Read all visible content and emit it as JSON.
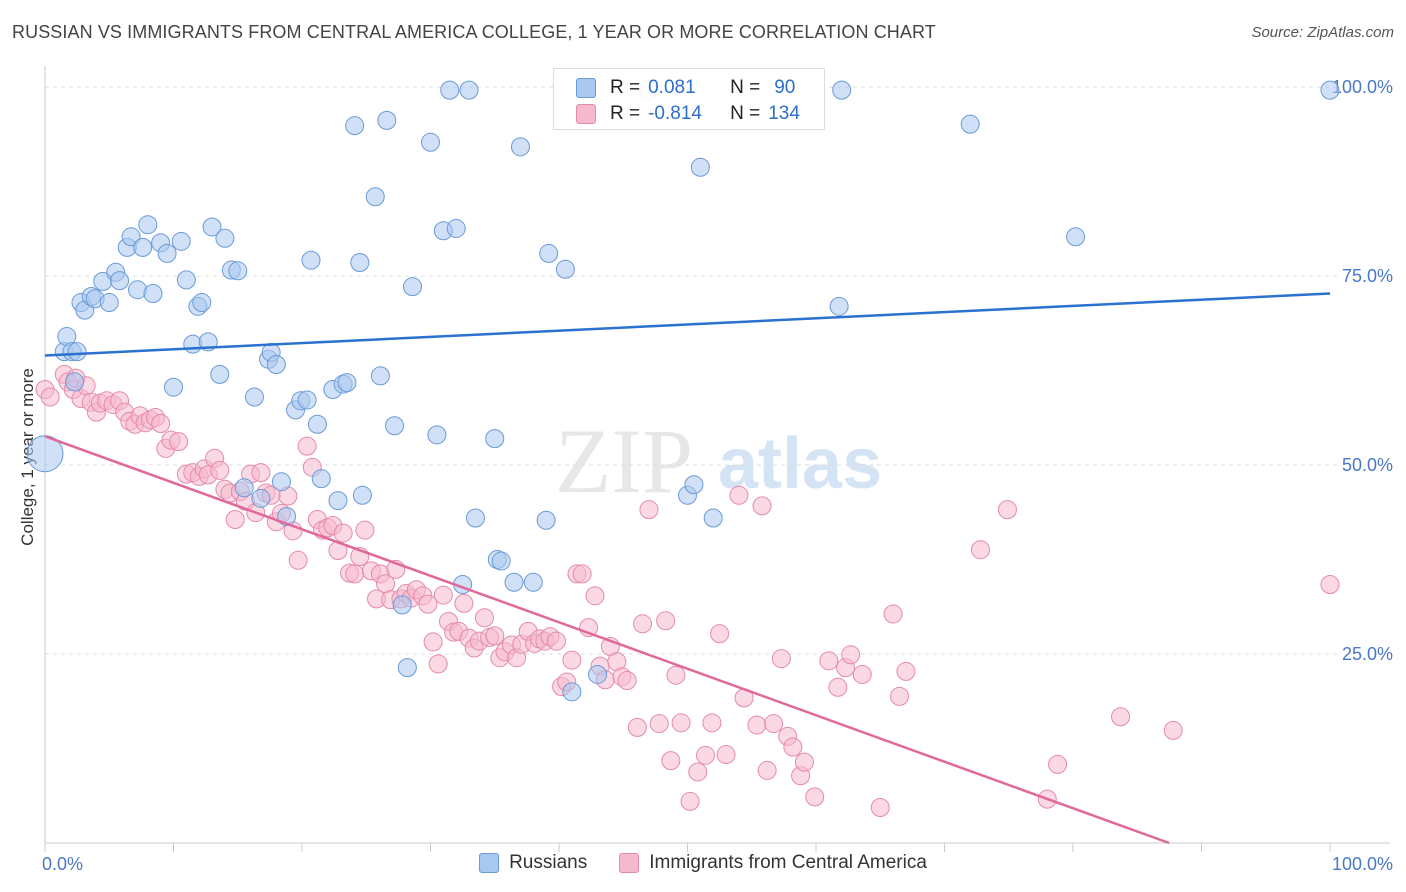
{
  "title": "RUSSIAN VS IMMIGRANTS FROM CENTRAL AMERICA COLLEGE, 1 YEAR OR MORE CORRELATION CHART",
  "source": "Source: ZipAtlas.com",
  "watermark": {
    "zip": "ZIP",
    "atlas": "atlas"
  },
  "colors": {
    "russians_fill": "#a9c8f0",
    "russians_stroke": "#6a9ad8",
    "russians_line": "#2b72d0",
    "immigrants_fill": "#f5b9cd",
    "immigrants_stroke": "#e58aab",
    "immigrants_line": "#e0689a",
    "grid": "#dddddd",
    "tick_label": "#4a78c8"
  },
  "stats": {
    "r_label": "R =",
    "n_label": "N =",
    "russians": {
      "r": "0.081",
      "n": "90"
    },
    "immigrants": {
      "r": "-0.814",
      "n": "134"
    }
  },
  "legend": {
    "russians": "Russians",
    "immigrants": "Immigrants from Central America"
  },
  "chart_data": {
    "type": "scatter",
    "title": "RUSSIAN VS IMMIGRANTS FROM CENTRAL AMERICA COLLEGE, 1 YEAR OR MORE CORRELATION CHART",
    "xlabel": "",
    "ylabel": "College, 1 year or more",
    "xlim": [
      0,
      100
    ],
    "ylim": [
      0,
      102
    ],
    "x_tick_labels": [
      "0.0%",
      "100.0%"
    ],
    "y_ticks": [
      25,
      50,
      75,
      100
    ],
    "y_tick_labels": [
      "25.0%",
      "50.0%",
      "75.0%",
      "100.0%"
    ],
    "grid": true,
    "legend_position": "bottom",
    "series": [
      {
        "name": "Russians",
        "trend": {
          "x": [
            0,
            100
          ],
          "y": [
            64.5,
            72.7
          ]
        },
        "points": [
          [
            0,
            51.5
          ],
          [
            1.5,
            65
          ],
          [
            1.7,
            67
          ],
          [
            2.1,
            65
          ],
          [
            2.3,
            61
          ],
          [
            2.5,
            65
          ],
          [
            2.8,
            71.5
          ],
          [
            3.1,
            70.5
          ],
          [
            3.6,
            72.3
          ],
          [
            3.9,
            72
          ],
          [
            4.5,
            74.3
          ],
          [
            5,
            71.5
          ],
          [
            5.5,
            75.5
          ],
          [
            5.8,
            74.4
          ],
          [
            6.4,
            78.8
          ],
          [
            6.7,
            80.2
          ],
          [
            7.2,
            73.2
          ],
          [
            7.6,
            78.8
          ],
          [
            8,
            81.8
          ],
          [
            8.4,
            72.7
          ],
          [
            9,
            79.4
          ],
          [
            9.5,
            78
          ],
          [
            10,
            60.3
          ],
          [
            10.6,
            79.6
          ],
          [
            11,
            74.5
          ],
          [
            11.5,
            66
          ],
          [
            11.9,
            71
          ],
          [
            12.2,
            71.5
          ],
          [
            12.7,
            66.3
          ],
          [
            13,
            81.5
          ],
          [
            13.6,
            62
          ],
          [
            14,
            80
          ],
          [
            14.5,
            75.8
          ],
          [
            15,
            75.7
          ],
          [
            15.5,
            47
          ],
          [
            16.3,
            59
          ],
          [
            16.8,
            45.6
          ],
          [
            17.4,
            64
          ],
          [
            17.6,
            64.9
          ],
          [
            18,
            63.3
          ],
          [
            18.4,
            47.8
          ],
          [
            18.8,
            43.2
          ],
          [
            19.5,
            57.3
          ],
          [
            19.9,
            58.5
          ],
          [
            20.4,
            58.6
          ],
          [
            20.7,
            77.1
          ],
          [
            21.2,
            55.4
          ],
          [
            21.5,
            48.2
          ],
          [
            22.4,
            60
          ],
          [
            22.8,
            45.3
          ],
          [
            23.2,
            60.7
          ],
          [
            23.5,
            60.9
          ],
          [
            24.1,
            94.9
          ],
          [
            24.5,
            76.8
          ],
          [
            24.7,
            46
          ],
          [
            25.7,
            85.5
          ],
          [
            26.1,
            61.8
          ],
          [
            26.6,
            95.6
          ],
          [
            27.2,
            55.2
          ],
          [
            27.8,
            31.5
          ],
          [
            28.2,
            23.2
          ],
          [
            28.6,
            73.6
          ],
          [
            30,
            92.7
          ],
          [
            30.5,
            54
          ],
          [
            31,
            81
          ],
          [
            31.5,
            99.6
          ],
          [
            32,
            81.3
          ],
          [
            32.5,
            34.2
          ],
          [
            33,
            99.6
          ],
          [
            33.5,
            43
          ],
          [
            35,
            53.5
          ],
          [
            35.2,
            37.5
          ],
          [
            35.5,
            37.3
          ],
          [
            36.5,
            34.5
          ],
          [
            37,
            92.1
          ],
          [
            38,
            34.5
          ],
          [
            39,
            42.7
          ],
          [
            39.2,
            78
          ],
          [
            40.5,
            75.9
          ],
          [
            41,
            20
          ],
          [
            43,
            22.3
          ],
          [
            47,
            99.6
          ],
          [
            50,
            46
          ],
          [
            50.5,
            47.4
          ],
          [
            51,
            89.4
          ],
          [
            52,
            43
          ],
          [
            61.8,
            71
          ],
          [
            62,
            99.6
          ],
          [
            72,
            95.1
          ],
          [
            80.2,
            80.2
          ],
          [
            100,
            99.6
          ]
        ]
      },
      {
        "name": "Immigrants from Central America",
        "trend": {
          "x": [
            0,
            100
          ],
          "y": [
            53.8,
            -7.7
          ]
        },
        "points": [
          [
            0,
            60
          ],
          [
            0.4,
            59
          ],
          [
            1.5,
            62
          ],
          [
            1.8,
            61
          ],
          [
            2.2,
            60
          ],
          [
            2.4,
            61.5
          ],
          [
            2.8,
            58.8
          ],
          [
            3.2,
            60.5
          ],
          [
            3.6,
            58.3
          ],
          [
            4,
            57
          ],
          [
            4.3,
            58.2
          ],
          [
            4.8,
            58.5
          ],
          [
            5.3,
            58
          ],
          [
            5.8,
            58.5
          ],
          [
            6.2,
            57
          ],
          [
            6.6,
            55.8
          ],
          [
            7,
            55.4
          ],
          [
            7.4,
            56.5
          ],
          [
            7.8,
            55.6
          ],
          [
            8.2,
            56
          ],
          [
            8.6,
            56.3
          ],
          [
            9,
            55.5
          ],
          [
            9.4,
            52.2
          ],
          [
            9.8,
            53.3
          ],
          [
            10.4,
            53.1
          ],
          [
            11,
            48.8
          ],
          [
            11.5,
            49
          ],
          [
            12,
            48.5
          ],
          [
            12.4,
            49.5
          ],
          [
            12.7,
            48.7
          ],
          [
            13.2,
            50.9
          ],
          [
            13.6,
            49.3
          ],
          [
            14,
            46.8
          ],
          [
            14.4,
            46.3
          ],
          [
            14.8,
            42.8
          ],
          [
            15.2,
            46.5
          ],
          [
            15.6,
            45.2
          ],
          [
            16,
            48.8
          ],
          [
            16.4,
            43.7
          ],
          [
            16.8,
            49
          ],
          [
            17.2,
            46.3
          ],
          [
            17.6,
            46
          ],
          [
            18,
            42.5
          ],
          [
            18.4,
            43.6
          ],
          [
            18.9,
            45.9
          ],
          [
            19.3,
            41.3
          ],
          [
            19.7,
            37.4
          ],
          [
            20.4,
            52.5
          ],
          [
            20.8,
            49.7
          ],
          [
            21.2,
            42.8
          ],
          [
            21.6,
            41.4
          ],
          [
            22,
            41.7
          ],
          [
            22.4,
            42
          ],
          [
            22.8,
            38.7
          ],
          [
            23.2,
            41
          ],
          [
            23.7,
            35.7
          ],
          [
            24.1,
            35.6
          ],
          [
            24.5,
            37.9
          ],
          [
            24.9,
            41.4
          ],
          [
            25.4,
            36
          ],
          [
            25.8,
            32.3
          ],
          [
            26.1,
            35.6
          ],
          [
            26.5,
            34.3
          ],
          [
            26.9,
            32.2
          ],
          [
            27.3,
            36.2
          ],
          [
            27.7,
            32.3
          ],
          [
            28.1,
            33
          ],
          [
            28.5,
            32.4
          ],
          [
            28.9,
            33.5
          ],
          [
            29.4,
            32.7
          ],
          [
            29.8,
            31.6
          ],
          [
            30.2,
            26.6
          ],
          [
            30.6,
            23.7
          ],
          [
            31,
            32.8
          ],
          [
            31.4,
            29.3
          ],
          [
            31.8,
            27.9
          ],
          [
            32.2,
            28
          ],
          [
            32.6,
            31.7
          ],
          [
            33,
            27.1
          ],
          [
            33.4,
            25.8
          ],
          [
            33.8,
            26.7
          ],
          [
            34.2,
            29.8
          ],
          [
            34.6,
            27.2
          ],
          [
            35,
            27.4
          ],
          [
            35.4,
            24.5
          ],
          [
            35.8,
            25.3
          ],
          [
            36.3,
            26.2
          ],
          [
            36.7,
            24.5
          ],
          [
            37.1,
            26.3
          ],
          [
            37.6,
            28
          ],
          [
            38.1,
            26.4
          ],
          [
            38.5,
            27
          ],
          [
            38.9,
            26.7
          ],
          [
            39.3,
            27.3
          ],
          [
            39.8,
            26.7
          ],
          [
            40.2,
            20.7
          ],
          [
            40.6,
            21.3
          ],
          [
            41,
            24.2
          ],
          [
            41.4,
            35.6
          ],
          [
            41.8,
            35.6
          ],
          [
            42.3,
            28.5
          ],
          [
            42.8,
            32.7
          ],
          [
            43.2,
            23.4
          ],
          [
            43.6,
            21.6
          ],
          [
            44,
            26
          ],
          [
            44.5,
            24
          ],
          [
            44.9,
            22
          ],
          [
            45.3,
            21.5
          ],
          [
            46.1,
            15.3
          ],
          [
            46.5,
            29
          ],
          [
            47,
            44.1
          ],
          [
            47.8,
            15.8
          ],
          [
            48.3,
            29.4
          ],
          [
            48.7,
            10.9
          ],
          [
            49.1,
            22.2
          ],
          [
            49.5,
            15.9
          ],
          [
            50.2,
            5.5
          ],
          [
            50.8,
            9.4
          ],
          [
            51.4,
            11.6
          ],
          [
            51.9,
            15.9
          ],
          [
            52.5,
            27.7
          ],
          [
            53,
            11.7
          ],
          [
            54,
            46
          ],
          [
            54.4,
            19.2
          ],
          [
            55.4,
            15.6
          ],
          [
            55.8,
            44.6
          ],
          [
            56.2,
            9.6
          ],
          [
            56.7,
            15.8
          ],
          [
            57.3,
            24.4
          ],
          [
            57.8,
            14.1
          ],
          [
            58.2,
            12.7
          ],
          [
            58.8,
            8.9
          ],
          [
            59.1,
            10.7
          ],
          [
            59.9,
            6.1
          ],
          [
            61,
            24.1
          ],
          [
            61.7,
            20.6
          ],
          [
            62.3,
            23.2
          ],
          [
            62.7,
            24.9
          ],
          [
            63.6,
            22.3
          ],
          [
            65,
            4.7
          ],
          [
            66,
            30.3
          ],
          [
            66.5,
            19.4
          ],
          [
            67,
            22.7
          ],
          [
            72.8,
            38.8
          ],
          [
            74.9,
            44.1
          ],
          [
            78,
            5.8
          ],
          [
            78.8,
            10.4
          ],
          [
            83.7,
            16.7
          ],
          [
            87.8,
            14.9
          ],
          [
            100,
            34.2
          ]
        ]
      }
    ]
  }
}
